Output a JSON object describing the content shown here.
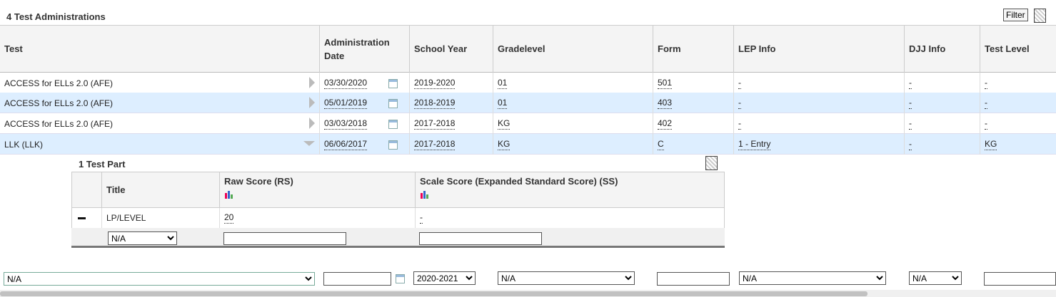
{
  "header": {
    "title": "4 Test Administrations",
    "filter_button": "Filter"
  },
  "table": {
    "columns": [
      "Test",
      "Administration Date",
      "School Year",
      "Gradelevel",
      "Form",
      "LEP Info",
      "DJJ Info",
      "Test Level"
    ],
    "rows": [
      [
        "ACCESS for ELLs 2.0 (AFE)",
        "03/30/2020",
        "2019-2020",
        "01",
        "501",
        "-",
        "-",
        "-"
      ],
      [
        "ACCESS for ELLs 2.0 (AFE)",
        "05/01/2019",
        "2018-2019",
        "01",
        "403",
        "-",
        "-",
        "-"
      ],
      [
        "ACCESS for ELLs 2.0 (AFE)",
        "03/03/2018",
        "2017-2018",
        "KG",
        "402",
        "-",
        "-",
        "-"
      ],
      [
        "LLK (LLK)",
        "06/06/2017",
        "2017-2018",
        "KG",
        "C",
        "1 - Entry",
        "-",
        "KG"
      ]
    ]
  },
  "subtable": {
    "title": "1 Test Part",
    "columns": [
      "Title",
      "Raw Score (RS)",
      "Scale Score (Expanded Standard Score) (SS)"
    ],
    "rows": [
      [
        "LP/LEVEL",
        "20",
        "-"
      ]
    ],
    "new_row": {
      "title": "N/A"
    }
  },
  "new_row": {
    "test": "N/A",
    "school_year": "2020-2021",
    "gradelevel": "N/A",
    "lep_info": "N/A",
    "djj_info": "N/A"
  }
}
